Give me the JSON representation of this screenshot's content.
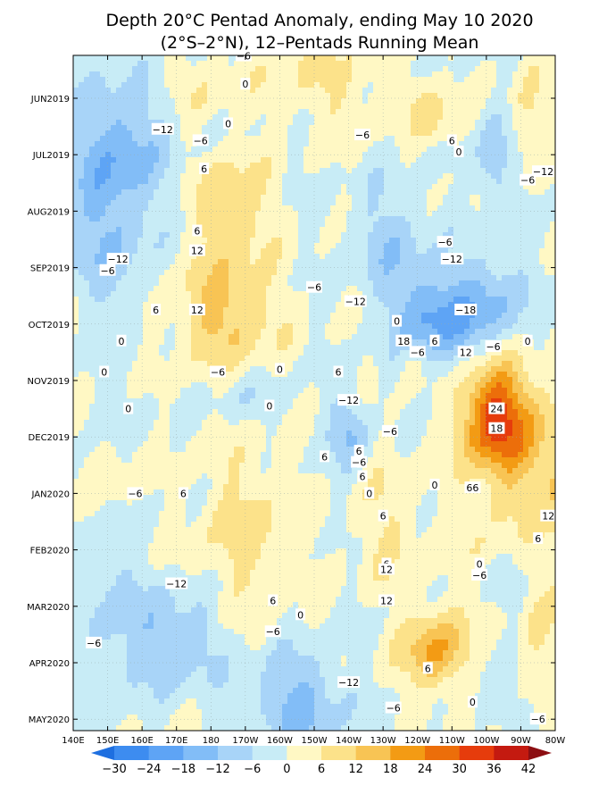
{
  "chart_data": {
    "type": "heatmap",
    "title": "Depth 20°C Pentad Anomaly, ending May 10 2020",
    "subtitle": "(2°S–2°N), 12–Pentads Running Mean",
    "x_ticks": [
      "140E",
      "150E",
      "160E",
      "170E",
      "180",
      "170W",
      "160W",
      "150W",
      "140W",
      "130W",
      "120W",
      "110W",
      "100W",
      "90W",
      "80W"
    ],
    "y_ticks": [
      "JUN2019",
      "JUL2019",
      "AUG2019",
      "SEP2019",
      "OCT2019",
      "NOV2019",
      "DEC2019",
      "JAN2020",
      "FEB2020",
      "MAR2020",
      "APR2020",
      "MAY2020"
    ],
    "colorbar": {
      "levels": [
        "−30",
        "−24",
        "−18",
        "−12",
        "−6",
        "0",
        "6",
        "12",
        "18",
        "24",
        "30",
        "36",
        "42"
      ],
      "colors": [
        "#1e6fe0",
        "#3d8cf0",
        "#5ea4f5",
        "#82bdf7",
        "#a8d4f8",
        "#c8ecf6",
        "#fff8c4",
        "#fce28a",
        "#f8c454",
        "#f39b14",
        "#ec6e0a",
        "#e63c0c",
        "#c41a10",
        "#8c0e12"
      ]
    },
    "color_scale": {
      "bins": [
        -30,
        -24,
        -18,
        -12,
        -6,
        0,
        6,
        12,
        18,
        24,
        30,
        36,
        42
      ],
      "colors": [
        "#1e6fe0",
        "#3d8cf0",
        "#5ea4f5",
        "#82bdf7",
        "#a8d4f8",
        "#c8ecf6",
        "#fff8c4",
        "#fce28a",
        "#f8c454",
        "#f39b14",
        "#ec6e0a",
        "#e63c0c",
        "#c41a10",
        "#8c0e12"
      ]
    },
    "features": [
      {
        "lon": 152,
        "mon": 0.9,
        "amp": -16,
        "slon": 14,
        "smon": 1.2
      },
      {
        "lon": 150,
        "mon": 2.6,
        "amp": -10,
        "slon": 12,
        "smon": 1.1
      },
      {
        "lon": 178,
        "mon": -0.2,
        "amp": 4,
        "slon": 10,
        "smon": 0.6
      },
      {
        "lon": 214,
        "mon": -0.3,
        "amp": 7,
        "slon": 18,
        "smon": 0.7
      },
      {
        "lon": 244,
        "mon": 0.3,
        "amp": 9,
        "slon": 6,
        "smon": 0.6
      },
      {
        "lon": 262,
        "mon": 1.1,
        "amp": -12,
        "slon": 5,
        "smon": 0.8
      },
      {
        "lon": 272,
        "mon": 0.3,
        "amp": 7,
        "slon": 5,
        "smon": 0.9
      },
      {
        "lon": 186,
        "mon": 1.9,
        "amp": 12,
        "slon": 10,
        "smon": 0.9
      },
      {
        "lon": 184,
        "mon": 3.8,
        "amp": 14,
        "slon": 14,
        "smon": 1.0
      },
      {
        "lon": 232,
        "mon": 2.5,
        "amp": -9,
        "slon": 12,
        "smon": 1.0
      },
      {
        "lon": 245,
        "mon": 3.9,
        "amp": -20,
        "slon": 12,
        "smon": 0.8
      },
      {
        "lon": 262,
        "mon": 3.6,
        "amp": -12,
        "slon": 10,
        "smon": 0.9
      },
      {
        "lon": 152,
        "mon": 5.4,
        "amp": -3,
        "slon": 12,
        "smon": 1.0
      },
      {
        "lon": 152,
        "mon": 6.5,
        "amp": 4,
        "slon": 8,
        "smon": 1.0
      },
      {
        "lon": 190,
        "mon": 5.3,
        "amp": -5,
        "slon": 12,
        "smon": 0.5
      },
      {
        "lon": 220,
        "mon": 5.9,
        "amp": -12,
        "slon": 6,
        "smon": 0.7
      },
      {
        "lon": 238,
        "mon": 4.6,
        "amp": 6,
        "slon": 4,
        "smon": 0.5
      },
      {
        "lon": 262,
        "mon": 5.6,
        "amp": 27,
        "slon": 9,
        "smon": 0.9
      },
      {
        "lon": 270,
        "mon": 6.2,
        "amp": 12,
        "slon": 14,
        "smon": 1.3
      },
      {
        "lon": 283,
        "mon": 7.0,
        "amp": 10,
        "slon": 6,
        "smon": 1.5
      },
      {
        "lon": 190,
        "mon": 7.7,
        "amp": 8,
        "slon": 14,
        "smon": 1.5
      },
      {
        "lon": 232,
        "mon": 7.5,
        "amp": 6,
        "slon": 10,
        "smon": 1.2
      },
      {
        "lon": 258,
        "mon": 8.2,
        "amp": 3,
        "slon": 10,
        "smon": 1.0
      },
      {
        "lon": 150,
        "mon": 9.0,
        "amp": -7,
        "slon": 12,
        "smon": 1.5
      },
      {
        "lon": 170,
        "mon": 9.6,
        "amp": -12,
        "slon": 12,
        "smon": 0.9
      },
      {
        "lon": 205,
        "mon": 10.7,
        "amp": -14,
        "slon": 14,
        "smon": 0.9
      },
      {
        "lon": 245,
        "mon": 9.8,
        "amp": 19,
        "slon": 9,
        "smon": 0.7
      },
      {
        "lon": 275,
        "mon": 9.4,
        "amp": 6,
        "slon": 8,
        "smon": 0.8
      },
      {
        "lon": 268,
        "mon": 8.8,
        "amp": -6,
        "slon": 5,
        "smon": 0.6
      },
      {
        "lon": 262,
        "mon": 10.6,
        "amp": -4,
        "slon": 8,
        "smon": 0.6
      }
    ],
    "contour_labels": [
      {
        "text": "−6",
        "lon": 189.5,
        "mon": -0.75
      },
      {
        "text": "0",
        "lon": 190,
        "mon": -0.25
      },
      {
        "text": "−12",
        "lon": 166,
        "mon": 0.55
      },
      {
        "text": "−6",
        "lon": 177,
        "mon": 0.75
      },
      {
        "text": "0",
        "lon": 185,
        "mon": 0.45
      },
      {
        "text": "−6",
        "lon": 224,
        "mon": 0.65
      },
      {
        "text": "6",
        "lon": 250,
        "mon": 0.75
      },
      {
        "text": "0",
        "lon": 252,
        "mon": 0.95
      },
      {
        "text": "6",
        "lon": 178,
        "mon": 1.25
      },
      {
        "text": "−12",
        "lon": 276.5,
        "mon": 1.3
      },
      {
        "text": "−6",
        "lon": 272,
        "mon": 1.45
      },
      {
        "text": "−6",
        "lon": 248,
        "mon": 2.55
      },
      {
        "text": "6",
        "lon": 176,
        "mon": 2.35
      },
      {
        "text": "12",
        "lon": 176,
        "mon": 2.7
      },
      {
        "text": "−12",
        "lon": 153,
        "mon": 2.85
      },
      {
        "text": "−6",
        "lon": 150,
        "mon": 3.05
      },
      {
        "text": "−12",
        "lon": 250,
        "mon": 2.85
      },
      {
        "text": "−6",
        "lon": 210,
        "mon": 3.35
      },
      {
        "text": "−12",
        "lon": 222,
        "mon": 3.6
      },
      {
        "text": "12",
        "lon": 176,
        "mon": 3.75
      },
      {
        "text": "6",
        "lon": 164,
        "mon": 3.75
      },
      {
        "text": "−18",
        "lon": 254,
        "mon": 3.75
      },
      {
        "text": "0",
        "lon": 154,
        "mon": 4.3
      },
      {
        "text": "0",
        "lon": 234,
        "mon": 3.95
      },
      {
        "text": "18",
        "lon": 236,
        "mon": 4.3
      },
      {
        "text": "6",
        "lon": 245,
        "mon": 4.3
      },
      {
        "text": "12",
        "lon": 254,
        "mon": 4.5
      },
      {
        "text": "−6",
        "lon": 262,
        "mon": 4.4
      },
      {
        "text": "0",
        "lon": 272,
        "mon": 4.3
      },
      {
        "text": "−6",
        "lon": 240,
        "mon": 4.5
      },
      {
        "text": "0",
        "lon": 149,
        "mon": 4.85
      },
      {
        "text": "−6",
        "lon": 182,
        "mon": 4.85
      },
      {
        "text": "0",
        "lon": 200,
        "mon": 4.8
      },
      {
        "text": "6",
        "lon": 217,
        "mon": 4.85
      },
      {
        "text": "−12",
        "lon": 220,
        "mon": 5.35
      },
      {
        "text": "0",
        "lon": 197,
        "mon": 5.45
      },
      {
        "text": "24",
        "lon": 263,
        "mon": 5.5
      },
      {
        "text": "0",
        "lon": 156,
        "mon": 5.5
      },
      {
        "text": "18",
        "lon": 263,
        "mon": 5.85
      },
      {
        "text": "−6",
        "lon": 232,
        "mon": 5.9
      },
      {
        "text": "6",
        "lon": 223,
        "mon": 6.25
      },
      {
        "text": "−6",
        "lon": 223,
        "mon": 6.45
      },
      {
        "text": "6",
        "lon": 213,
        "mon": 6.35
      },
      {
        "text": "6",
        "lon": 224,
        "mon": 6.7
      },
      {
        "text": "0",
        "lon": 226,
        "mon": 7.0
      },
      {
        "text": "0",
        "lon": 245,
        "mon": 6.85
      },
      {
        "text": "66",
        "lon": 256,
        "mon": 6.9
      },
      {
        "text": "6",
        "lon": 172,
        "mon": 7.0
      },
      {
        "text": "−6",
        "lon": 158,
        "mon": 7.0
      },
      {
        "text": "12",
        "lon": 278,
        "mon": 7.4
      },
      {
        "text": "6",
        "lon": 230,
        "mon": 7.4
      },
      {
        "text": "6",
        "lon": 275,
        "mon": 7.8
      },
      {
        "text": "6",
        "lon": 231,
        "mon": 8.25
      },
      {
        "text": "12",
        "lon": 231,
        "mon": 8.35
      },
      {
        "text": "0",
        "lon": 258,
        "mon": 8.25
      },
      {
        "text": "−6",
        "lon": 258,
        "mon": 8.45
      },
      {
        "text": "−12",
        "lon": 170,
        "mon": 8.6
      },
      {
        "text": "6",
        "lon": 198,
        "mon": 8.9
      },
      {
        "text": "0",
        "lon": 206,
        "mon": 9.15
      },
      {
        "text": "12",
        "lon": 231,
        "mon": 8.9
      },
      {
        "text": "−6",
        "lon": 198,
        "mon": 9.45
      },
      {
        "text": "−6",
        "lon": 146,
        "mon": 9.65
      },
      {
        "text": "6",
        "lon": 243,
        "mon": 10.1
      },
      {
        "text": "−12",
        "lon": 220,
        "mon": 10.35
      },
      {
        "text": "−6",
        "lon": 233,
        "mon": 10.8
      },
      {
        "text": "0",
        "lon": 256,
        "mon": 10.7
      },
      {
        "text": "−6",
        "lon": 275,
        "mon": 11.0
      }
    ]
  }
}
